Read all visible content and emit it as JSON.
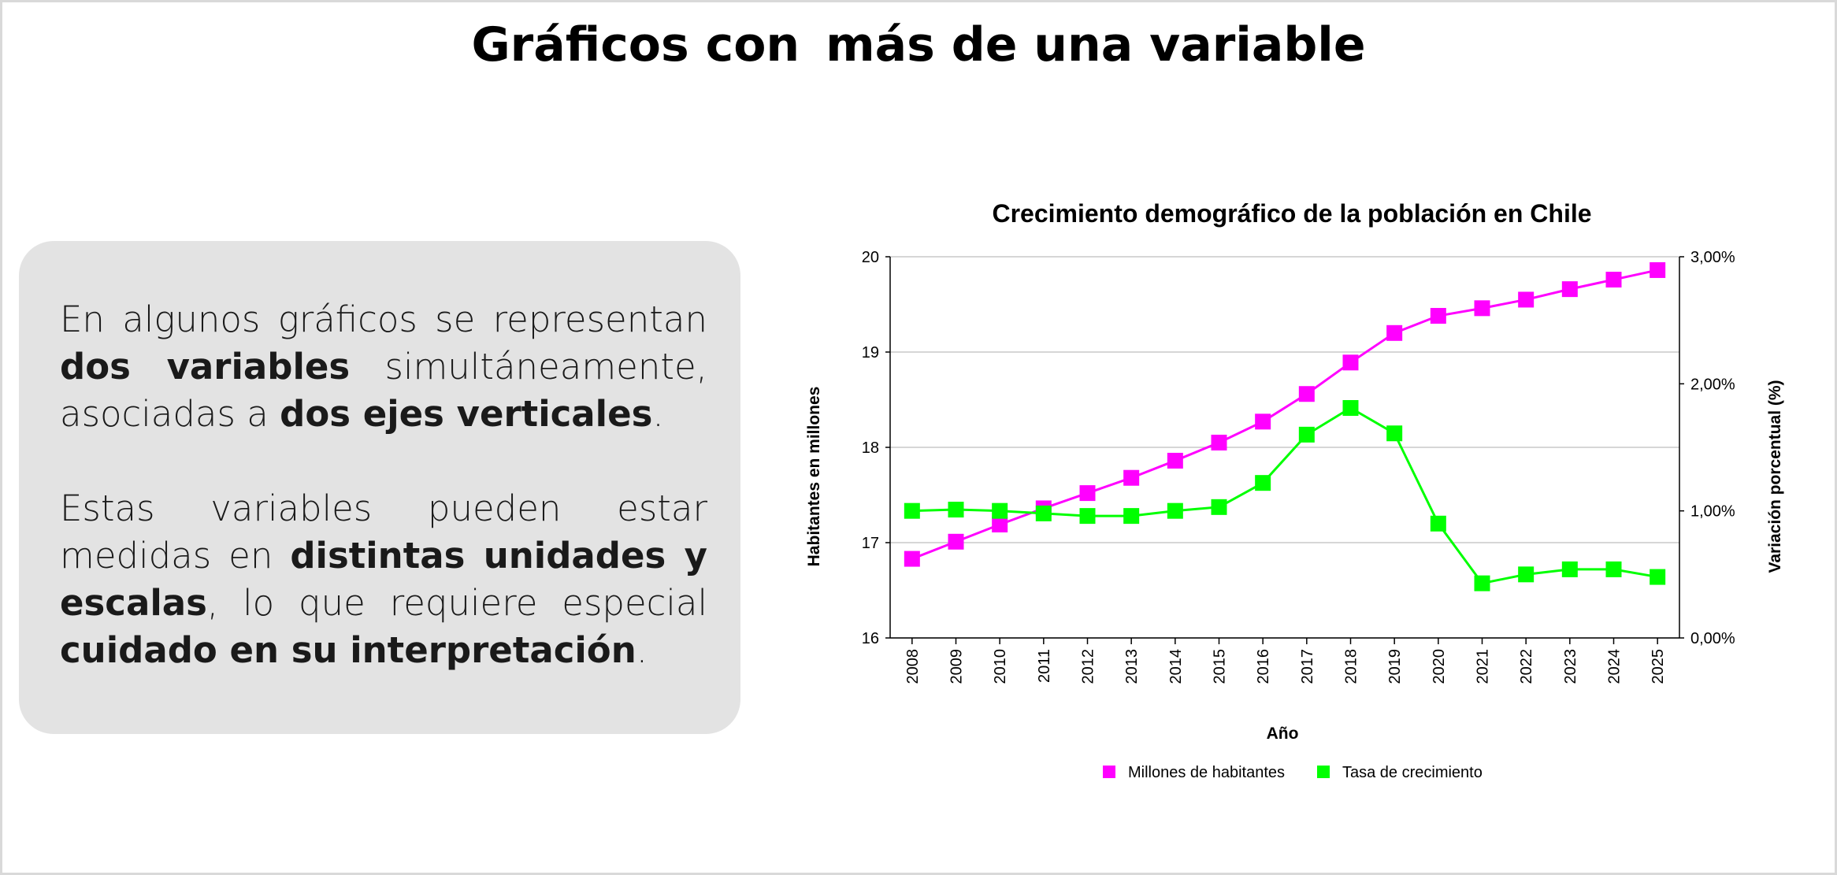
{
  "slide": {
    "title_part1": "Gráficos con",
    "title_part2": "más de una variable"
  },
  "text": {
    "p1_a": "En algunos gráficos se representan ",
    "p1_b": "dos variables",
    "p1_c": " simultáneamente, asociadas a ",
    "p1_d": "dos ejes verticales",
    "p1_e": ".",
    "p2_a": "Estas variables pueden estar medidas en ",
    "p2_b": "distintas unidades y escalas",
    "p2_c": ", lo que requiere especial ",
    "p2_d": "cuidado en su interpretación",
    "p2_e": "."
  },
  "chart_data": {
    "type": "line",
    "title": "Crecimiento demográfico de la población en Chile",
    "xlabel": "Año",
    "ylabel": "Habitantes en millones",
    "y2label": "Variación porcentual (%)",
    "categories": [
      "2008",
      "2009",
      "2010",
      "2011",
      "2012",
      "2013",
      "2014",
      "2015",
      "2016",
      "2017",
      "2018",
      "2019",
      "2020",
      "2021",
      "2022",
      "2023",
      "2024",
      "2025"
    ],
    "ylim": [
      16,
      20
    ],
    "yticks": [
      "16",
      "17",
      "18",
      "19",
      "20"
    ],
    "y2lim": [
      0,
      3
    ],
    "y2ticks": [
      "0,00%",
      "1,00%",
      "2,00%",
      "3,00%"
    ],
    "grid": true,
    "legend_position": "bottom",
    "series": [
      {
        "name": "Millones de habitantes",
        "axis": "left",
        "color": "#ff00ff",
        "values": [
          16.83,
          17.01,
          17.19,
          17.36,
          17.52,
          17.68,
          17.86,
          18.05,
          18.27,
          18.56,
          18.89,
          19.2,
          19.38,
          19.46,
          19.55,
          19.66,
          19.76,
          19.86
        ]
      },
      {
        "name": "Tasa de crecimiento",
        "axis": "right",
        "color": "#00ff00",
        "values": [
          1.0,
          1.01,
          1.0,
          0.98,
          0.96,
          0.96,
          1.0,
          1.03,
          1.22,
          1.6,
          1.81,
          1.61,
          0.9,
          0.43,
          0.5,
          0.54,
          0.54,
          0.48
        ]
      }
    ]
  }
}
